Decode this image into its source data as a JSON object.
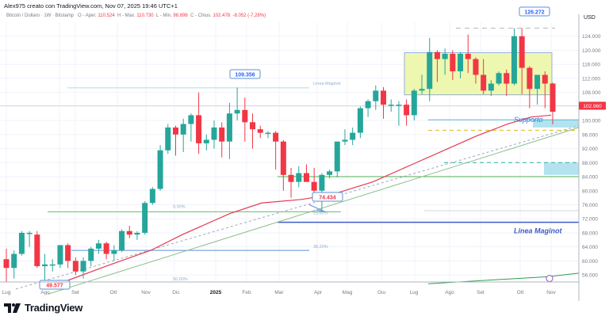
{
  "header": {
    "creator_line": "Alex975 creato con TradingView.com, Nov 07, 2025 19:46 UTC+1",
    "symbol": "Bitcoin / Dollaro · 1W · Bitstamp",
    "open_label": "O - Aper.",
    "open_value": "110.524",
    "high_label": "H - Max.",
    "high_value": "110.730",
    "low_label": "L - Min.",
    "low_value": "98.898",
    "close_label": "C - Chius.",
    "close_value": "102.478",
    "change": "-8.052 (-7,28%)"
  },
  "footer": {
    "brand": "TradingView"
  },
  "colors": {
    "up": "#26a69a",
    "down": "#f23645",
    "ma": "#e53950",
    "range_box": "#eef7b0",
    "support_zone": "#b2e3ef",
    "maginot": "#3d5bc9"
  },
  "chart_data": {
    "type": "candlestick",
    "title": "Bitcoin / Dollaro · 1W · Bitstamp",
    "xlabel": "",
    "ylabel": "USD",
    "ylim": [
      54000,
      128000
    ],
    "grid": true,
    "y_ticks": [
      "124.000",
      "120.000",
      "116.000",
      "112.000",
      "108.000",
      "104.000",
      "100.000",
      "96.000",
      "92.000",
      "88.000",
      "84.000",
      "80.000",
      "76.000",
      "72.000",
      "68.000",
      "64.000",
      "60.000",
      "56.000"
    ],
    "x_ticks": [
      "Lug",
      "Ago",
      "Set",
      "Ott",
      "Nov",
      "Dic",
      "2025",
      "Feb",
      "Mar",
      "Apr",
      "Mag",
      "Giu",
      "Lug",
      "Ago",
      "Set",
      "Ott",
      "Nov"
    ],
    "last_price_label": "102.960",
    "annotations": [
      {
        "text": "126.272",
        "type": "price-callout",
        "value": 126272
      },
      {
        "text": "109.356",
        "type": "price-callout",
        "value": 109356
      },
      {
        "text": "74.434",
        "type": "price-callout",
        "value": 74434
      },
      {
        "text": "49.577",
        "type": "price-callout",
        "value": 49577
      },
      {
        "text": "Supporto",
        "type": "label"
      },
      {
        "text": "Linea Maginot",
        "type": "label",
        "value": 71000
      },
      {
        "text": "0,00%",
        "type": "fib-level"
      },
      {
        "text": "23,60%",
        "type": "fib-level"
      },
      {
        "text": "38,20%",
        "type": "fib-level"
      },
      {
        "text": "50,00%",
        "type": "fib-level"
      },
      {
        "text": "38,20%",
        "type": "fib-level"
      }
    ],
    "series": [
      {
        "name": "BTCUSD weekly",
        "candles": [
          [
            60500,
            63500,
            54000,
            58000
          ],
          [
            58000,
            63000,
            55000,
            62000
          ],
          [
            62000,
            68500,
            61500,
            68000
          ],
          [
            68000,
            68500,
            64000,
            68000
          ],
          [
            67500,
            68500,
            58000,
            58500
          ],
          [
            58500,
            62000,
            53500,
            59000
          ],
          [
            59000,
            60500,
            57000,
            59000
          ],
          [
            59000,
            64500,
            58000,
            64500
          ],
          [
            64500,
            65000,
            58000,
            60000
          ],
          [
            60000,
            61000,
            56000,
            57000
          ],
          [
            57000,
            61000,
            55000,
            60000
          ],
          [
            60000,
            64000,
            58500,
            63500
          ],
          [
            63500,
            66000,
            62000,
            65000
          ],
          [
            65000,
            65500,
            60500,
            62000
          ],
          [
            62000,
            64500,
            60000,
            63000
          ],
          [
            63000,
            69000,
            62500,
            68500
          ],
          [
            68500,
            70000,
            66500,
            67500
          ],
          [
            67500,
            68500,
            66000,
            68000
          ],
          [
            68000,
            77000,
            67500,
            76500
          ],
          [
            76500,
            81000,
            76000,
            80500
          ],
          [
            80500,
            93000,
            80000,
            91500
          ],
          [
            91500,
            99000,
            90500,
            98000
          ],
          [
            98000,
            98500,
            90000,
            96000
          ],
          [
            96000,
            100500,
            91000,
            99000
          ],
          [
            99000,
            102000,
            94000,
            101500
          ],
          [
            101500,
            108000,
            90500,
            93500
          ],
          [
            93500,
            96000,
            91500,
            94500
          ],
          [
            94500,
            100000,
            92000,
            98000
          ],
          [
            98000,
            99500,
            89500,
            94000
          ],
          [
            94000,
            105000,
            89000,
            102000
          ],
          [
            102000,
            109356,
            100000,
            103000
          ],
          [
            103000,
            106500,
            94000,
            99500
          ],
          [
            99500,
            102000,
            92000,
            97500
          ],
          [
            97500,
            98500,
            95000,
            96500
          ],
          [
            96500,
            97000,
            95000,
            96500
          ],
          [
            96500,
            97000,
            86000,
            94000
          ],
          [
            94000,
            94500,
            80000,
            84500
          ],
          [
            84500,
            86500,
            78000,
            82500
          ],
          [
            82500,
            87000,
            81000,
            85000
          ],
          [
            85000,
            87500,
            83000,
            82500
          ],
          [
            82500,
            86500,
            77000,
            80000
          ],
          [
            80000,
            85000,
            74434,
            84500
          ],
          [
            84500,
            86000,
            83500,
            85500
          ],
          [
            85500,
            94000,
            83800,
            94000
          ],
          [
            94000,
            97500,
            93000,
            94500
          ],
          [
            94500,
            98000,
            93000,
            96500
          ],
          [
            96500,
            104000,
            95000,
            103500
          ],
          [
            103500,
            106000,
            101000,
            105500
          ],
          [
            105500,
            110000,
            103000,
            108500
          ],
          [
            108500,
            109500,
            100500,
            104500
          ],
          [
            104500,
            106000,
            102500,
            104500
          ],
          [
            104500,
            105500,
            98500,
            104500
          ],
          [
            104500,
            106000,
            98500,
            101500
          ],
          [
            101500,
            109000,
            100000,
            108500
          ],
          [
            108500,
            113000,
            107500,
            109000
          ],
          [
            109000,
            123500,
            105500,
            119500
          ],
          [
            119500,
            120000,
            111000,
            117500
          ],
          [
            117500,
            120500,
            113000,
            119000
          ],
          [
            119000,
            120000,
            111500,
            114000
          ],
          [
            114000,
            119500,
            112000,
            119000
          ],
          [
            119000,
            124500,
            113500,
            117500
          ],
          [
            117500,
            118000,
            110500,
            113000
          ],
          [
            113000,
            117500,
            107500,
            108500
          ],
          [
            108500,
            111500,
            107000,
            110500
          ],
          [
            110500,
            114000,
            110000,
            113500
          ],
          [
            113500,
            114500,
            107000,
            110500
          ],
          [
            110500,
            126272,
            110000,
            124000
          ],
          [
            124000,
            126272,
            107500,
            115000
          ],
          [
            115000,
            115500,
            103500,
            109000
          ],
          [
            109000,
            113000,
            104500,
            113000
          ],
          [
            113000,
            114000,
            103500,
            110500
          ],
          [
            110524,
            110730,
            98898,
            102478
          ]
        ]
      }
    ]
  }
}
